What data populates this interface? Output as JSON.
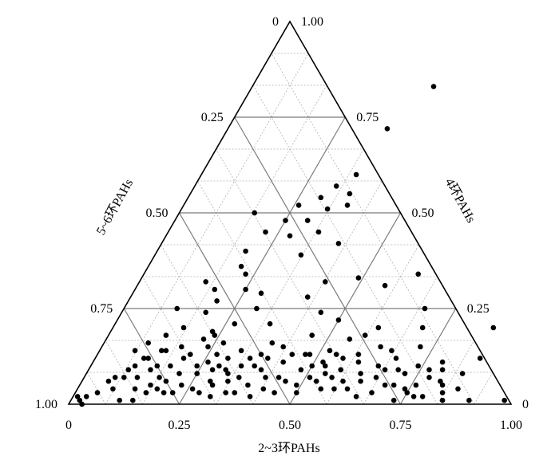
{
  "chart_data": {
    "type": "scatter",
    "subtype": "ternary",
    "axes": {
      "bottom": {
        "label": "2~3环PAHs",
        "ticks": [
          "0",
          "0.25",
          "0.50",
          "0.75",
          "1.00"
        ]
      },
      "left": {
        "label": "5~6环PAHs",
        "ticks": [
          "1.00",
          "0.75",
          "0.50",
          "0.25",
          "0"
        ]
      },
      "right": {
        "label": "4环PAHs",
        "ticks": [
          "0",
          "0.25",
          "0.50",
          "0.75",
          "1.00"
        ]
      }
    },
    "major_grid": 0.25,
    "minor_grid": 0.083,
    "marker_color": "#000000",
    "points": [
      [
        0.01,
        0.02
      ],
      [
        0.02,
        0.01
      ],
      [
        0.03,
        0.02
      ],
      [
        0.03,
        0.0
      ],
      [
        0.05,
        0.03
      ],
      [
        0.06,
        0.06
      ],
      [
        0.07,
        0.07
      ],
      [
        0.08,
        0.04
      ],
      [
        0.09,
        0.09
      ],
      [
        0.1,
        0.1
      ],
      [
        0.11,
        0.01
      ],
      [
        0.12,
        0.07
      ],
      [
        0.12,
        0.12
      ],
      [
        0.13,
        0.04
      ],
      [
        0.14,
        0.09
      ],
      [
        0.14,
        0.01
      ],
      [
        0.15,
        0.14
      ],
      [
        0.16,
        0.05
      ],
      [
        0.16,
        0.03
      ],
      [
        0.17,
        0.07
      ],
      [
        0.18,
        0.04
      ],
      [
        0.18,
        0.1
      ],
      [
        0.19,
        0.06
      ],
      [
        0.2,
        0.12
      ],
      [
        0.2,
        0.03
      ],
      [
        0.21,
        0.08
      ],
      [
        0.22,
        0.03
      ],
      [
        0.23,
        0.05
      ],
      [
        0.22,
        0.17
      ],
      [
        0.24,
        0.15
      ],
      [
        0.25,
        0.08
      ],
      [
        0.26,
        0.04
      ],
      [
        0.27,
        0.13
      ],
      [
        0.28,
        0.09
      ],
      [
        0.28,
        0.03
      ],
      [
        0.29,
        0.06
      ],
      [
        0.3,
        0.12
      ],
      [
        0.3,
        0.05
      ],
      [
        0.31,
        0.02
      ],
      [
        0.32,
        0.08
      ],
      [
        0.33,
        0.06
      ],
      [
        0.34,
        0.1
      ],
      [
        0.34,
        0.03
      ],
      [
        0.35,
        0.07
      ],
      [
        0.36,
        0.03
      ],
      [
        0.37,
        0.13
      ],
      [
        0.38,
        0.05
      ],
      [
        0.39,
        0.09
      ],
      [
        0.4,
        0.02
      ],
      [
        0.41,
        0.07
      ],
      [
        0.42,
        0.04
      ],
      [
        0.43,
        0.11
      ],
      [
        0.44,
        0.07
      ],
      [
        0.45,
        0.03
      ],
      [
        0.46,
        0.06
      ],
      [
        0.47,
        0.13
      ],
      [
        0.48,
        0.09
      ],
      [
        0.49,
        0.05
      ],
      [
        0.5,
        0.03
      ],
      [
        0.51,
        0.07
      ],
      [
        0.52,
        0.11
      ],
      [
        0.53,
        0.06
      ],
      [
        0.54,
        0.08
      ],
      [
        0.55,
        0.04
      ],
      [
        0.56,
        0.07
      ],
      [
        0.57,
        0.09
      ],
      [
        0.58,
        0.04
      ],
      [
        0.59,
        0.06
      ],
      [
        0.6,
        0.11
      ],
      [
        0.61,
        0.04
      ],
      [
        0.62,
        0.08
      ],
      [
        0.63,
        0.06
      ],
      [
        0.64,
        0.02
      ],
      [
        0.65,
        0.1
      ],
      [
        0.66,
        0.07
      ],
      [
        0.67,
        0.03
      ],
      [
        0.68,
        0.12
      ],
      [
        0.69,
        0.05
      ],
      [
        0.7,
        0.09
      ],
      [
        0.71,
        0.05
      ],
      [
        0.72,
        0.08
      ],
      [
        0.73,
        0.01
      ],
      [
        0.74,
        0.04
      ],
      [
        0.75,
        0.03
      ],
      [
        0.76,
        0.05
      ],
      [
        0.77,
        0.02
      ],
      [
        0.78,
        0.07
      ],
      [
        0.79,
        0.02
      ],
      [
        0.8,
        0.09
      ],
      [
        0.84,
        0.01
      ],
      [
        0.82,
        0.05
      ],
      [
        0.83,
        0.03
      ],
      [
        0.9,
        0.01
      ],
      [
        0.98,
        0.01
      ],
      [
        0.86,
        0.2
      ],
      [
        0.79,
        0.11
      ],
      [
        0.72,
        0.15
      ],
      [
        0.66,
        0.14
      ],
      [
        0.6,
        0.2
      ],
      [
        0.55,
        0.17
      ],
      [
        0.68,
        0.25
      ],
      [
        0.56,
        0.31
      ],
      [
        0.42,
        0.32
      ],
      [
        0.49,
        0.33
      ],
      [
        0.4,
        0.28
      ],
      [
        0.3,
        0.25
      ],
      [
        0.29,
        0.29
      ],
      [
        0.33,
        0.39
      ],
      [
        0.35,
        0.21
      ],
      [
        0.45,
        0.24
      ],
      [
        0.5,
        0.22
      ],
      [
        0.62,
        0.34
      ],
      [
        0.27,
        0.21
      ],
      [
        0.25,
        0.3
      ],
      [
        0.2,
        0.27
      ],
      [
        0.19,
        0.24
      ],
      [
        0.16,
        0.2
      ],
      [
        0.18,
        0.3
      ],
      [
        0.12,
        0.25
      ],
      [
        0.15,
        0.32
      ],
      [
        0.2,
        0.4
      ],
      [
        0.22,
        0.45
      ],
      [
        0.25,
        0.48
      ],
      [
        0.28,
        0.44
      ],
      [
        0.26,
        0.52
      ],
      [
        0.3,
        0.54
      ],
      [
        0.32,
        0.57
      ],
      [
        0.33,
        0.51
      ],
      [
        0.36,
        0.55
      ],
      [
        0.37,
        0.52
      ],
      [
        0.35,
        0.6
      ],
      [
        0.3,
        0.48
      ],
      [
        0.17,
        0.5
      ],
      [
        0.21,
        0.36
      ],
      [
        0.23,
        0.34
      ],
      [
        0.13,
        0.18
      ],
      [
        0.23,
        0.19
      ],
      [
        0.27,
        0.16
      ],
      [
        0.24,
        0.18
      ],
      [
        0.18,
        0.15
      ],
      [
        0.32,
        0.14
      ],
      [
        0.38,
        0.16
      ],
      [
        0.41,
        0.15
      ],
      [
        0.46,
        0.18
      ],
      [
        0.52,
        0.14
      ],
      [
        0.54,
        0.13
      ],
      [
        0.58,
        0.18
      ],
      [
        0.34,
        0.45
      ],
      [
        0.4,
        0.42
      ],
      [
        0.36,
        0.72
      ],
      [
        0.41,
        0.83
      ],
      [
        0.7,
        0.2
      ],
      [
        0.08,
        0.14
      ],
      [
        0.1,
        0.16
      ],
      [
        0.11,
        0.12
      ],
      [
        0.14,
        0.14
      ],
      [
        0.09,
        0.07
      ],
      [
        0.15,
        0.1
      ],
      [
        0.21,
        0.13
      ],
      [
        0.24,
        0.1
      ],
      [
        0.26,
        0.11
      ],
      [
        0.29,
        0.1
      ],
      [
        0.31,
        0.09
      ],
      [
        0.35,
        0.12
      ],
      [
        0.37,
        0.1
      ],
      [
        0.39,
        0.12
      ],
      [
        0.44,
        0.13
      ],
      [
        0.48,
        0.13
      ],
      [
        0.5,
        0.1
      ],
      [
        0.53,
        0.1
      ],
      [
        0.56,
        0.12
      ],
      [
        0.59,
        0.13
      ],
      [
        0.63,
        0.15
      ],
      [
        0.67,
        0.09
      ],
      [
        0.74,
        0.1
      ],
      [
        0.77,
        0.09
      ],
      [
        0.81,
        0.06
      ],
      [
        0.85,
        0.08
      ],
      [
        0.86,
        0.04
      ],
      [
        0.87,
        0.12
      ]
    ]
  }
}
